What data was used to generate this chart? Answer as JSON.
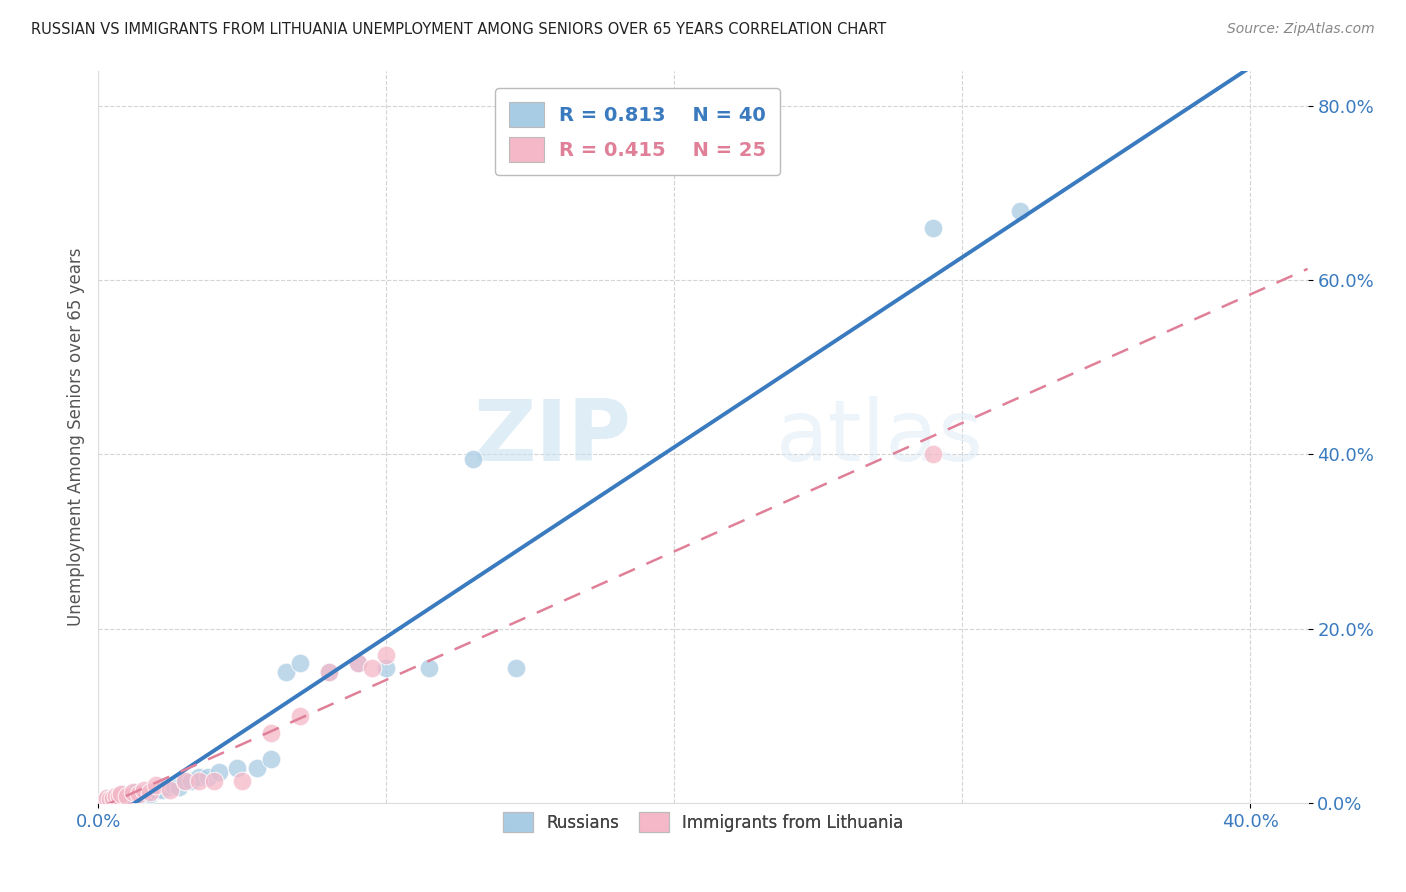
{
  "title": "RUSSIAN VS IMMIGRANTS FROM LITHUANIA UNEMPLOYMENT AMONG SENIORS OVER 65 YEARS CORRELATION CHART",
  "source": "Source: ZipAtlas.com",
  "ylabel": "Unemployment Among Seniors over 65 years",
  "xlim": [
    0.0,
    0.42
  ],
  "ylim": [
    0.0,
    0.84
  ],
  "xtick_vals": [
    0.0,
    0.4
  ],
  "xtick_labels": [
    "0.0%",
    "40.0%"
  ],
  "ytick_vals": [
    0.0,
    0.2,
    0.4,
    0.6,
    0.8
  ],
  "ytick_labels": [
    "0.0%",
    "20.0%",
    "40.0%",
    "60.0%",
    "80.0%"
  ],
  "grid_yticks": [
    0.0,
    0.2,
    0.4,
    0.6,
    0.8
  ],
  "grid_xticks": [
    0.0,
    0.1,
    0.2,
    0.3,
    0.4
  ],
  "blue_color": "#a8cce4",
  "pink_color": "#f4b8c8",
  "blue_line_color": "#3a7abf",
  "pink_line_color": "#e08098",
  "R_blue": 0.813,
  "N_blue": 40,
  "R_pink": 0.415,
  "N_pink": 25,
  "russians_x": [
    0.002,
    0.003,
    0.004,
    0.005,
    0.005,
    0.006,
    0.007,
    0.008,
    0.009,
    0.01,
    0.011,
    0.012,
    0.013,
    0.014,
    0.015,
    0.017,
    0.018,
    0.02,
    0.022,
    0.024,
    0.026,
    0.028,
    0.03,
    0.032,
    0.035,
    0.038,
    0.042,
    0.048,
    0.055,
    0.06,
    0.065,
    0.07,
    0.08,
    0.09,
    0.1,
    0.115,
    0.13,
    0.145,
    0.29,
    0.32
  ],
  "russians_y": [
    0.002,
    0.005,
    0.003,
    0.006,
    0.004,
    0.008,
    0.006,
    0.01,
    0.004,
    0.008,
    0.01,
    0.008,
    0.012,
    0.008,
    0.01,
    0.012,
    0.01,
    0.015,
    0.015,
    0.018,
    0.02,
    0.018,
    0.025,
    0.025,
    0.03,
    0.03,
    0.035,
    0.04,
    0.04,
    0.05,
    0.15,
    0.16,
    0.15,
    0.16,
    0.155,
    0.155,
    0.395,
    0.155,
    0.66,
    0.68
  ],
  "lithuania_x": [
    0.002,
    0.003,
    0.004,
    0.005,
    0.006,
    0.007,
    0.008,
    0.01,
    0.012,
    0.014,
    0.016,
    0.018,
    0.02,
    0.025,
    0.03,
    0.035,
    0.04,
    0.05,
    0.06,
    0.07,
    0.08,
    0.09,
    0.095,
    0.1,
    0.29
  ],
  "lithuania_y": [
    0.002,
    0.005,
    0.004,
    0.006,
    0.008,
    0.008,
    0.01,
    0.008,
    0.012,
    0.01,
    0.015,
    0.012,
    0.02,
    0.015,
    0.025,
    0.025,
    0.025,
    0.025,
    0.08,
    0.1,
    0.15,
    0.16,
    0.155,
    0.17,
    0.4
  ],
  "watermark_zip": "ZIP",
  "watermark_atlas": "atlas",
  "background_color": "#ffffff",
  "grid_color": "#d0d0d0",
  "tick_color": "#3a7abf"
}
